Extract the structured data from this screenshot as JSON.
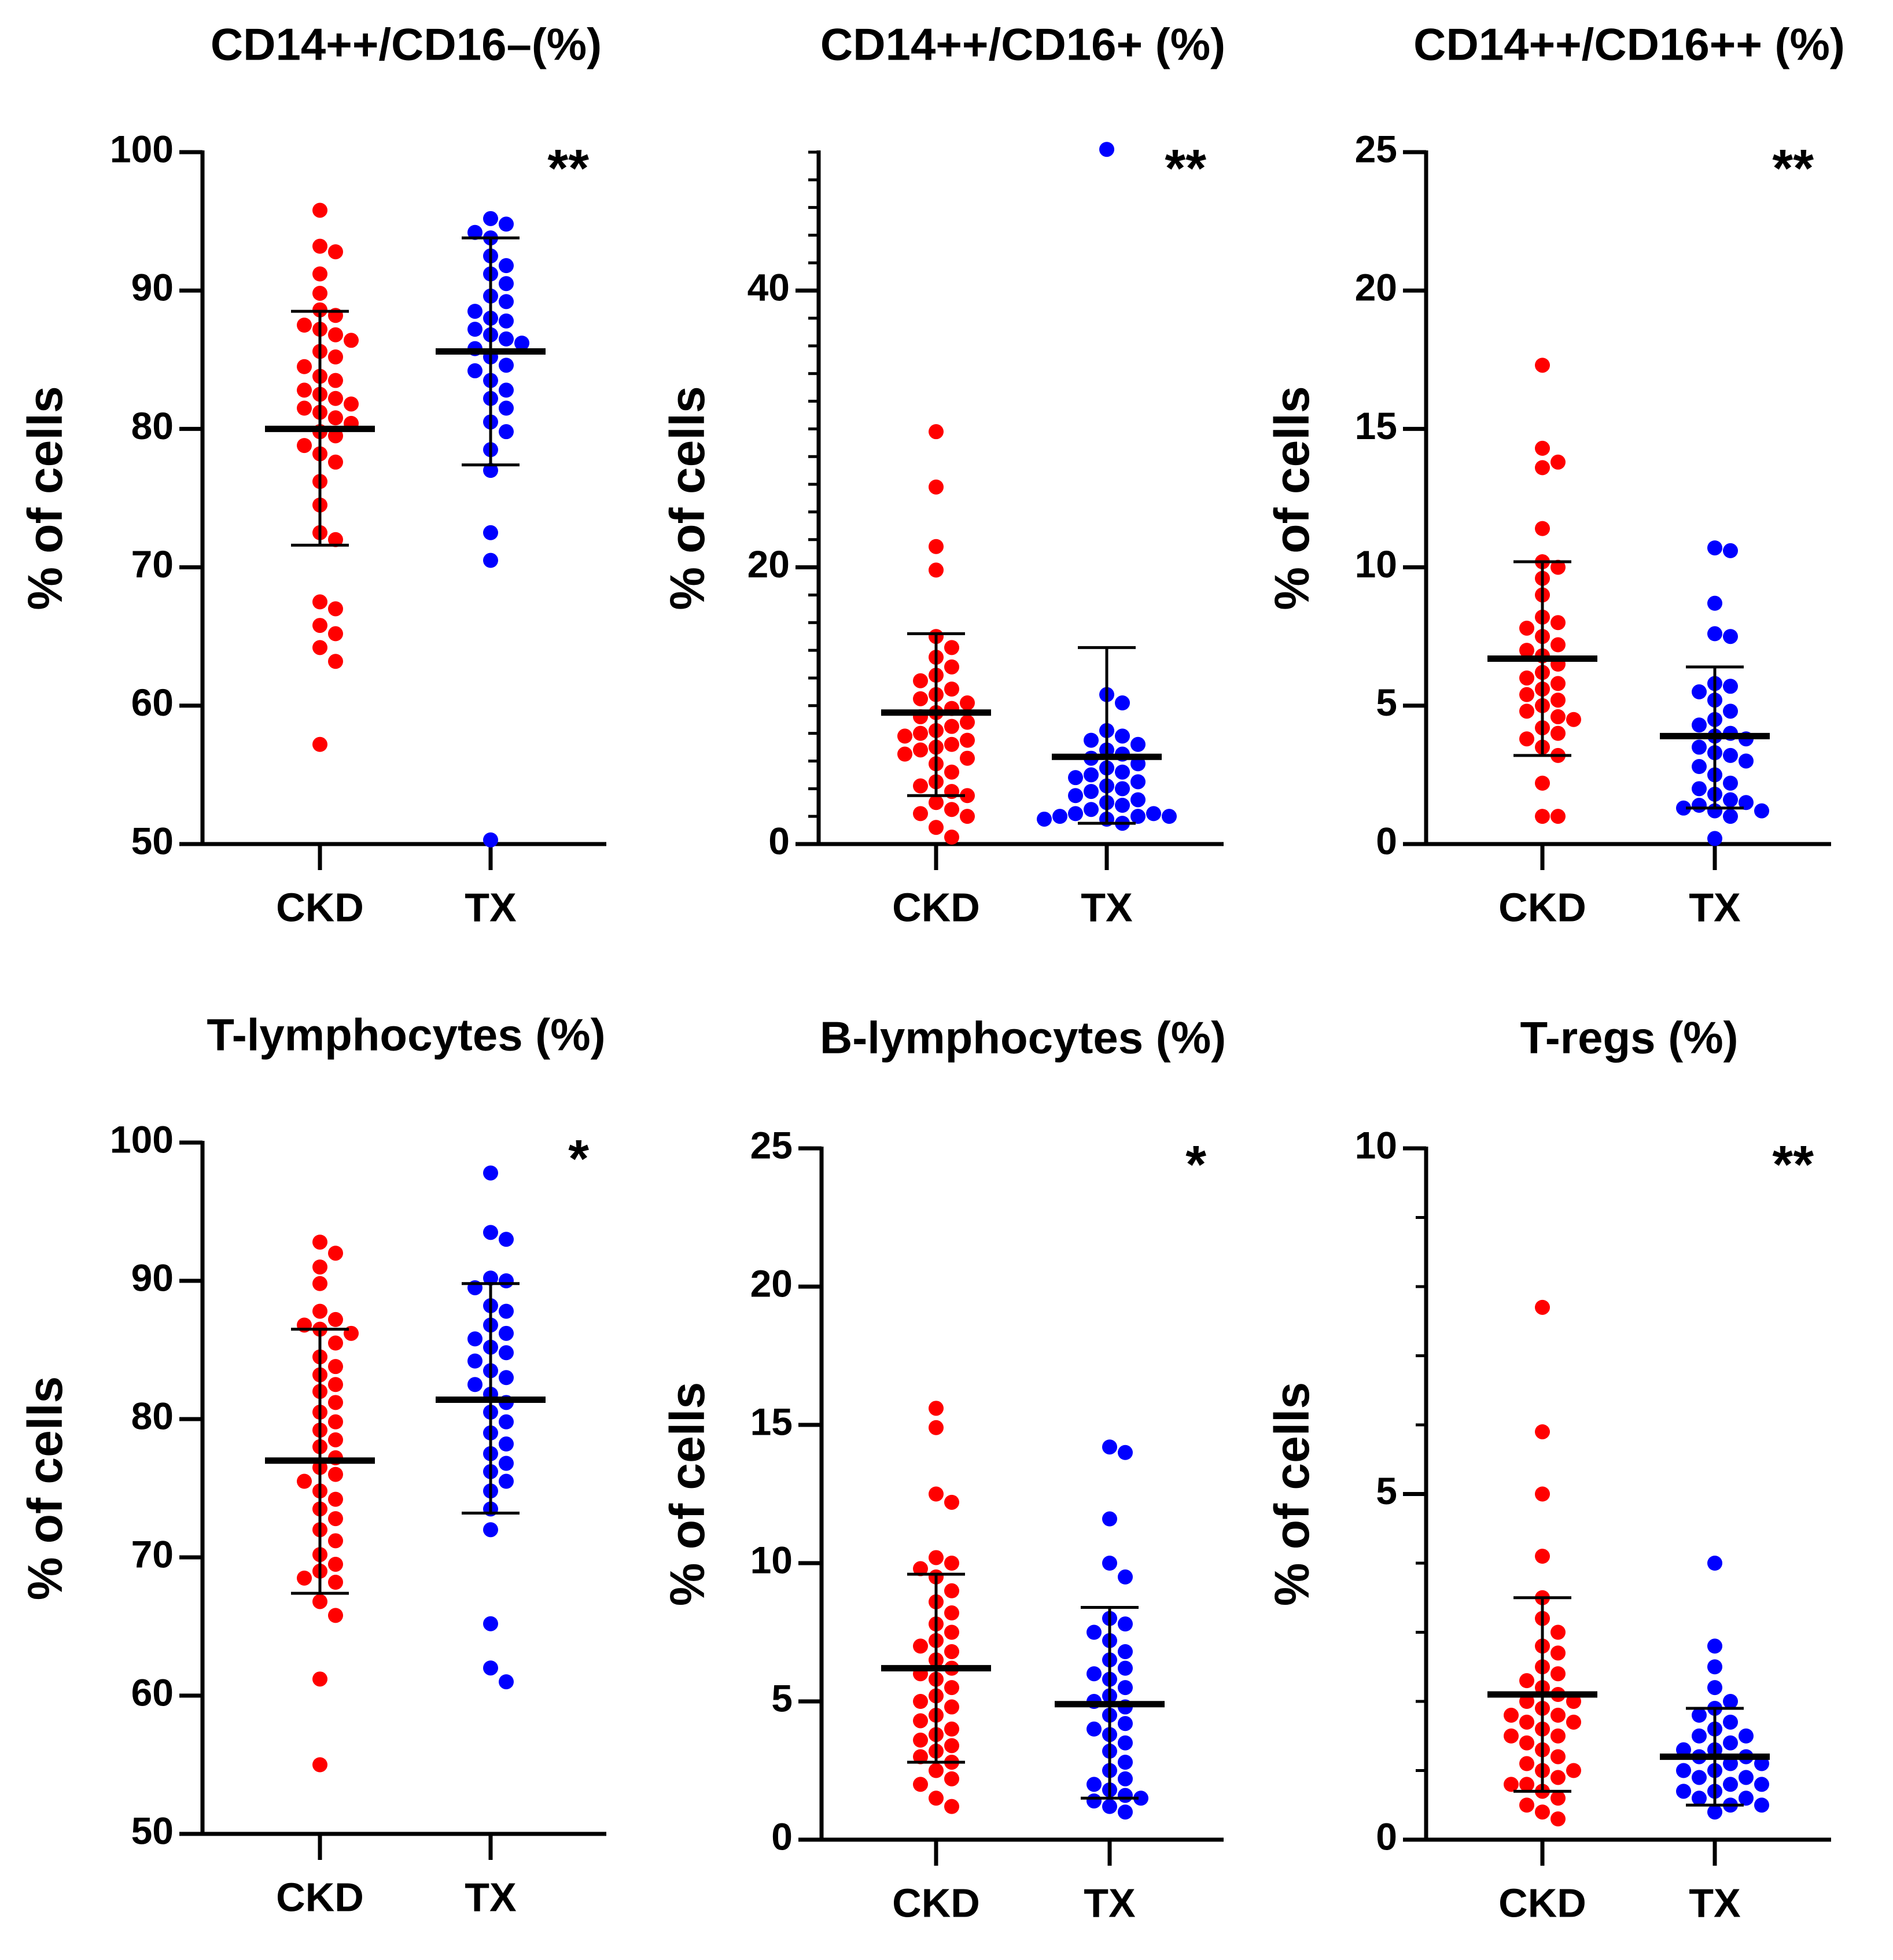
{
  "figure": {
    "group_labels": [
      "CKD",
      "TX"
    ],
    "y_axis_label": "% of cells"
  },
  "colors": {
    "CKD": "#ff0000",
    "TX": "#0000ff",
    "axis": "#000000"
  },
  "chart_data": [
    {
      "type": "scatter",
      "title": "CD14++/CD16–(%)",
      "ylabel": "% of cells",
      "categories": [
        "CKD",
        "TX"
      ],
      "ylim": [
        50,
        100
      ],
      "yticks": [
        50,
        60,
        70,
        80,
        90,
        100
      ],
      "minor_ticks": [],
      "significance": "**",
      "series": [
        {
          "name": "CKD",
          "mean": 80.0,
          "sd_low": 71.6,
          "sd_high": 88.5,
          "values": [
            95.8,
            93.2,
            92.8,
            91.2,
            89.8,
            88.6,
            88.2,
            87.5,
            87.2,
            86.8,
            86.4,
            85.6,
            85.2,
            84.5,
            83.8,
            83.5,
            82.8,
            82.5,
            82.2,
            81.8,
            81.5,
            81.2,
            80.8,
            80.4,
            79.8,
            79.5,
            78.8,
            78.2,
            77.6,
            76.2,
            74.5,
            72.5,
            72.0,
            67.5,
            67.0,
            65.8,
            65.2,
            64.2,
            63.2,
            57.2
          ]
        },
        {
          "name": "TX",
          "mean": 85.6,
          "sd_low": 77.4,
          "sd_high": 93.8,
          "values": [
            95.2,
            94.8,
            94.2,
            93.8,
            92.5,
            91.8,
            91.2,
            90.5,
            89.6,
            89.2,
            88.5,
            88.0,
            87.8,
            87.2,
            86.8,
            86.5,
            86.2,
            85.8,
            85.2,
            84.6,
            84.2,
            83.5,
            82.8,
            82.2,
            81.5,
            80.5,
            79.8,
            78.5,
            77.0,
            72.5,
            70.5,
            50.3
          ]
        }
      ]
    },
    {
      "type": "scatter",
      "title": "CD14++/CD16+ (%)",
      "ylabel": "% of cells",
      "categories": [
        "CKD",
        "TX"
      ],
      "ylim": [
        0,
        50
      ],
      "yticks": [
        0,
        20,
        40
      ],
      "minor_ticks": [
        2,
        4,
        6,
        8,
        10,
        12,
        14,
        16,
        18,
        22,
        24,
        26,
        28,
        30,
        32,
        34,
        36,
        38,
        42,
        44,
        46,
        48,
        50
      ],
      "significance": "**",
      "series": [
        {
          "name": "CKD",
          "mean": 9.5,
          "sd_low": 3.5,
          "sd_high": 15.2,
          "values": [
            29.8,
            25.8,
            21.5,
            19.8,
            15.0,
            14.2,
            13.5,
            12.8,
            12.2,
            11.8,
            11.2,
            10.8,
            10.5,
            10.2,
            9.8,
            9.5,
            9.2,
            8.8,
            8.5,
            8.2,
            8.0,
            7.8,
            7.5,
            7.2,
            7.0,
            6.8,
            6.5,
            6.2,
            5.8,
            5.2,
            4.5,
            4.2,
            3.8,
            3.5,
            3.0,
            2.5,
            2.2,
            2.0,
            1.2,
            0.5
          ]
        },
        {
          "name": "TX",
          "mean": 6.3,
          "sd_low": 1.5,
          "sd_high": 14.2,
          "values": [
            50.2,
            10.8,
            10.2,
            8.2,
            7.8,
            7.5,
            7.2,
            6.8,
            6.5,
            6.2,
            5.8,
            5.5,
            5.2,
            5.0,
            4.8,
            4.5,
            4.2,
            4.0,
            3.8,
            3.5,
            3.2,
            3.0,
            2.8,
            2.5,
            2.2,
            2.2,
            2.0,
            2.0,
            2.0,
            1.8,
            1.8,
            1.5
          ]
        }
      ]
    },
    {
      "type": "scatter",
      "title": "CD14++/CD16++ (%)",
      "ylabel": "% of cells",
      "categories": [
        "CKD",
        "TX"
      ],
      "ylim": [
        0,
        25
      ],
      "yticks": [
        0,
        5,
        10,
        15,
        20,
        25
      ],
      "minor_ticks": [],
      "significance": "**",
      "series": [
        {
          "name": "CKD",
          "mean": 6.7,
          "sd_low": 3.2,
          "sd_high": 10.2,
          "values": [
            17.3,
            14.3,
            13.8,
            13.6,
            11.4,
            10.2,
            10.0,
            9.6,
            9.0,
            8.2,
            8.0,
            7.8,
            7.5,
            7.2,
            7.0,
            6.8,
            6.5,
            6.2,
            6.0,
            5.8,
            5.6,
            5.4,
            5.2,
            5.0,
            4.8,
            4.6,
            4.5,
            4.2,
            4.0,
            3.8,
            3.5,
            3.2,
            2.2,
            1.0,
            1.0
          ]
        },
        {
          "name": "TX",
          "mean": 3.9,
          "sd_low": 1.3,
          "sd_high": 6.4,
          "values": [
            10.7,
            10.6,
            8.7,
            7.6,
            7.5,
            5.8,
            5.7,
            5.5,
            5.2,
            4.8,
            4.5,
            4.3,
            4.0,
            3.9,
            3.8,
            3.5,
            3.3,
            3.2,
            3.0,
            2.8,
            2.5,
            2.2,
            2.0,
            1.8,
            1.6,
            1.5,
            1.4,
            1.3,
            1.2,
            1.2,
            1.0,
            0.2
          ]
        }
      ]
    },
    {
      "type": "scatter",
      "title": "T-lymphocytes (%)",
      "ylabel": "% of cells",
      "categories": [
        "CKD",
        "TX"
      ],
      "ylim": [
        50,
        100
      ],
      "yticks": [
        50,
        60,
        70,
        80,
        90,
        100
      ],
      "minor_ticks": [],
      "significance": "*",
      "series": [
        {
          "name": "CKD",
          "mean": 77.0,
          "sd_low": 67.4,
          "sd_high": 86.5,
          "values": [
            92.8,
            92.0,
            91.0,
            89.8,
            87.8,
            87.2,
            86.8,
            86.5,
            86.2,
            85.5,
            84.5,
            83.8,
            83.2,
            82.5,
            82.0,
            81.2,
            80.5,
            79.8,
            79.2,
            78.5,
            78.0,
            77.2,
            76.5,
            76.0,
            75.5,
            74.8,
            74.2,
            73.5,
            72.8,
            72.0,
            71.2,
            70.2,
            69.5,
            69.0,
            68.5,
            68.2,
            66.8,
            65.8,
            61.2,
            55.0
          ]
        },
        {
          "name": "TX",
          "mean": 81.4,
          "sd_low": 73.2,
          "sd_high": 89.8,
          "values": [
            97.8,
            93.5,
            93.0,
            90.2,
            90.0,
            89.5,
            88.2,
            87.8,
            86.8,
            86.2,
            85.8,
            85.2,
            84.8,
            84.2,
            83.5,
            83.0,
            82.5,
            81.8,
            81.2,
            80.5,
            79.8,
            79.0,
            78.2,
            77.5,
            76.8,
            76.2,
            75.5,
            74.8,
            73.5,
            72.0,
            65.2,
            62.0,
            61.0
          ]
        }
      ]
    },
    {
      "type": "scatter",
      "title": "B-lymphocytes (%)",
      "ylabel": "% of cells",
      "categories": [
        "CKD",
        "TX"
      ],
      "ylim": [
        0,
        25
      ],
      "yticks": [
        0,
        5,
        10,
        15,
        20,
        25
      ],
      "minor_ticks": [],
      "significance": "*",
      "series": [
        {
          "name": "CKD",
          "mean": 6.2,
          "sd_low": 2.8,
          "sd_high": 9.6,
          "values": [
            15.6,
            14.9,
            12.5,
            12.2,
            10.2,
            10.0,
            9.8,
            9.5,
            9.0,
            8.6,
            8.2,
            7.8,
            7.5,
            7.2,
            7.0,
            6.8,
            6.5,
            6.2,
            6.0,
            5.8,
            5.5,
            5.2,
            5.0,
            4.8,
            4.5,
            4.3,
            4.0,
            3.8,
            3.6,
            3.4,
            3.2,
            3.0,
            2.8,
            2.5,
            2.2,
            2.0,
            1.5,
            1.2
          ]
        },
        {
          "name": "TX",
          "mean": 4.9,
          "sd_low": 1.5,
          "sd_high": 8.4,
          "values": [
            14.2,
            14.0,
            11.6,
            10.0,
            9.5,
            8.0,
            7.8,
            7.5,
            7.2,
            6.8,
            6.5,
            6.2,
            6.0,
            5.8,
            5.5,
            5.2,
            5.0,
            4.8,
            4.5,
            4.2,
            4.0,
            3.8,
            3.5,
            3.2,
            2.8,
            2.5,
            2.2,
            2.0,
            1.8,
            1.6,
            1.5,
            1.4,
            1.2,
            1.0
          ]
        }
      ]
    },
    {
      "type": "scatter",
      "title": "T-regs (%)",
      "ylabel": "% of cells",
      "categories": [
        "CKD",
        "TX"
      ],
      "ylim": [
        0,
        10
      ],
      "yticks": [
        0,
        5,
        10
      ],
      "minor_ticks": [
        1,
        2,
        3,
        4,
        6,
        7,
        8,
        9
      ],
      "significance": "**",
      "series": [
        {
          "name": "CKD",
          "mean": 2.1,
          "sd_low": 0.7,
          "sd_high": 3.5,
          "values": [
            7.7,
            5.9,
            5.0,
            4.1,
            3.5,
            3.2,
            3.0,
            2.8,
            2.7,
            2.5,
            2.4,
            2.3,
            2.2,
            2.1,
            2.0,
            2.0,
            1.9,
            1.8,
            1.8,
            1.7,
            1.7,
            1.6,
            1.5,
            1.5,
            1.4,
            1.3,
            1.2,
            1.1,
            1.0,
            1.0,
            0.9,
            0.8,
            0.8,
            0.7,
            0.6,
            0.5,
            0.4,
            0.3
          ]
        },
        {
          "name": "TX",
          "mean": 1.2,
          "sd_low": 0.5,
          "sd_high": 1.9,
          "values": [
            4.0,
            2.8,
            2.5,
            2.2,
            2.0,
            1.9,
            1.8,
            1.7,
            1.6,
            1.5,
            1.5,
            1.4,
            1.3,
            1.3,
            1.2,
            1.2,
            1.1,
            1.1,
            1.0,
            1.0,
            0.9,
            0.9,
            0.8,
            0.8,
            0.7,
            0.7,
            0.6,
            0.6,
            0.5,
            0.5,
            0.4
          ]
        }
      ]
    }
  ]
}
